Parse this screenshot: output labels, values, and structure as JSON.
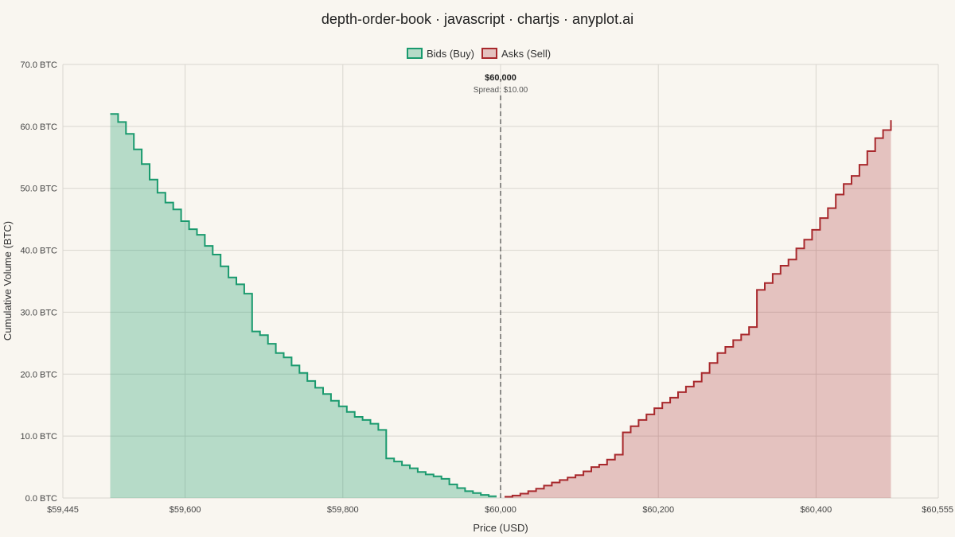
{
  "chart_data": {
    "type": "area",
    "title": "depth-order-book · javascript · chartjs · anyplot.ai",
    "xlabel": "Price (USD)",
    "ylabel": "Cumulative Volume (BTC)",
    "xlim": [
      59445,
      60555
    ],
    "ylim": [
      0,
      70
    ],
    "x_ticks": [
      59445,
      59600,
      59800,
      60000,
      60200,
      60400,
      60555
    ],
    "x_tick_labels": [
      "$59,445",
      "$59,600",
      "$59,800",
      "$60,000",
      "$60,200",
      "$60,400",
      "$60,555"
    ],
    "y_ticks": [
      0,
      10,
      20,
      30,
      40,
      50,
      60,
      70
    ],
    "y_tick_labels": [
      "0.0 BTC",
      "10.0 BTC",
      "20.0 BTC",
      "30.0 BTC",
      "40.0 BTC",
      "50.0 BTC",
      "60.0 BTC",
      "70.0 BTC"
    ],
    "grid": true,
    "legend_position": "top-center",
    "mid_price_label": "$60,000",
    "mid_price": 60000,
    "spread_label": "Spread: $10.00",
    "series": [
      {
        "name": "Bids (Buy)",
        "color": "#1a9a6e",
        "fill": "rgba(26,154,110,0.30)",
        "x": [
          59995,
          59985,
          59975,
          59965,
          59955,
          59945,
          59935,
          59925,
          59915,
          59905,
          59895,
          59885,
          59875,
          59865,
          59855,
          59845,
          59835,
          59825,
          59815,
          59805,
          59795,
          59785,
          59775,
          59765,
          59755,
          59745,
          59735,
          59725,
          59715,
          59705,
          59695,
          59685,
          59675,
          59665,
          59655,
          59645,
          59635,
          59625,
          59615,
          59605,
          59595,
          59585,
          59575,
          59565,
          59555,
          59545,
          59535,
          59525,
          59515,
          59505
        ],
        "values": [
          0.3,
          0.5,
          0.8,
          1.1,
          1.6,
          2.2,
          3.1,
          3.5,
          3.8,
          4.2,
          4.8,
          5.3,
          5.9,
          6.4,
          11.0,
          12.0,
          12.6,
          13.1,
          13.9,
          14.8,
          15.7,
          16.8,
          17.8,
          18.9,
          20.2,
          21.4,
          22.7,
          23.4,
          24.9,
          26.3,
          26.9,
          33.0,
          34.5,
          35.6,
          37.4,
          39.3,
          40.7,
          42.5,
          43.4,
          44.7,
          46.6,
          47.7,
          49.3,
          51.4,
          53.9,
          56.3,
          58.8,
          60.7,
          62.0,
          62.0
        ]
      },
      {
        "name": "Asks (Sell)",
        "color": "#a8282c",
        "fill": "rgba(168,40,44,0.25)",
        "x": [
          60005,
          60015,
          60025,
          60035,
          60045,
          60055,
          60065,
          60075,
          60085,
          60095,
          60105,
          60115,
          60125,
          60135,
          60145,
          60155,
          60165,
          60175,
          60185,
          60195,
          60205,
          60215,
          60225,
          60235,
          60245,
          60255,
          60265,
          60275,
          60285,
          60295,
          60305,
          60315,
          60325,
          60335,
          60345,
          60355,
          60365,
          60375,
          60385,
          60395,
          60405,
          60415,
          60425,
          60435,
          60445,
          60455,
          60465,
          60475,
          60485,
          60495
        ],
        "values": [
          0.2,
          0.4,
          0.7,
          1.1,
          1.5,
          2.0,
          2.5,
          2.9,
          3.3,
          3.7,
          4.3,
          5.0,
          5.4,
          6.2,
          7.0,
          10.6,
          11.6,
          12.6,
          13.5,
          14.5,
          15.4,
          16.2,
          17.1,
          18.0,
          18.8,
          20.2,
          21.8,
          23.4,
          24.4,
          25.5,
          26.4,
          27.6,
          33.6,
          34.7,
          36.2,
          37.5,
          38.5,
          40.3,
          41.7,
          43.3,
          45.2,
          46.8,
          49.0,
          50.7,
          52.0,
          53.8,
          56.0,
          58.1,
          59.4,
          61.0
        ]
      }
    ]
  }
}
